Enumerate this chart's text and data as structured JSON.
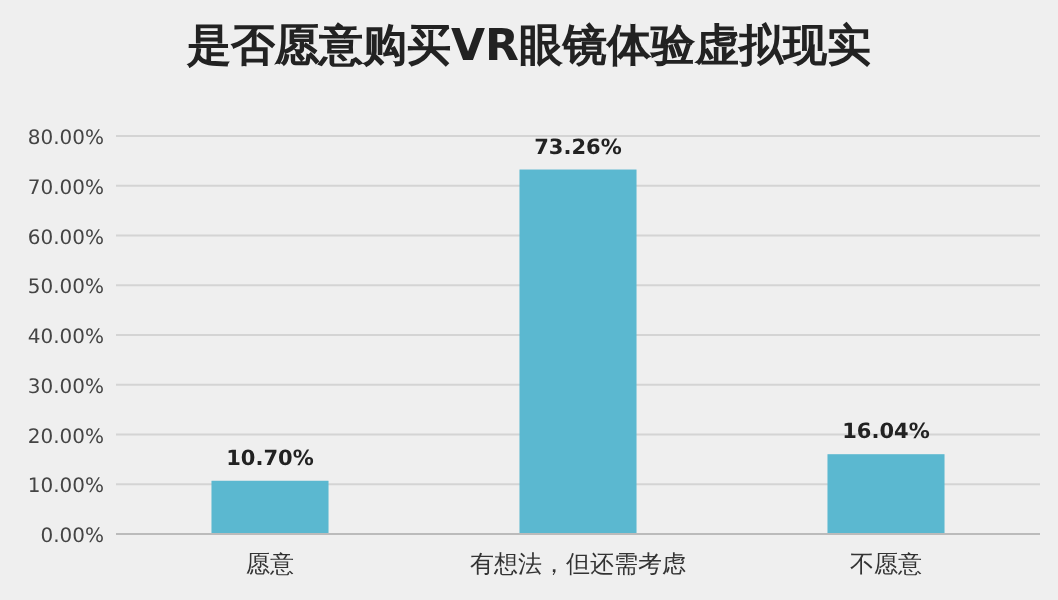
{
  "chart_data": {
    "type": "bar",
    "title": "是否愿意购买VR眼镜体验虚拟现实",
    "categories": [
      "愿意",
      "有想法，但还需考虑",
      "不愿意"
    ],
    "values": [
      10.7,
      73.26,
      16.04
    ],
    "value_labels": [
      "10.70%",
      "73.26%",
      "16.04%"
    ],
    "color": "#5bb8d0",
    "ylim": [
      0,
      80
    ],
    "yticks": [
      {
        "value": 0,
        "label": "0.00%"
      },
      {
        "value": 10,
        "label": "10.00%"
      },
      {
        "value": 20,
        "label": "20.00%"
      },
      {
        "value": 30,
        "label": "30.00%"
      },
      {
        "value": 40,
        "label": "40.00%"
      },
      {
        "value": 50,
        "label": "50.00%"
      },
      {
        "value": 60,
        "label": "60.00%"
      },
      {
        "value": 70,
        "label": "70.00%"
      },
      {
        "value": 80,
        "label": "80.00%"
      }
    ],
    "grid": "y"
  }
}
